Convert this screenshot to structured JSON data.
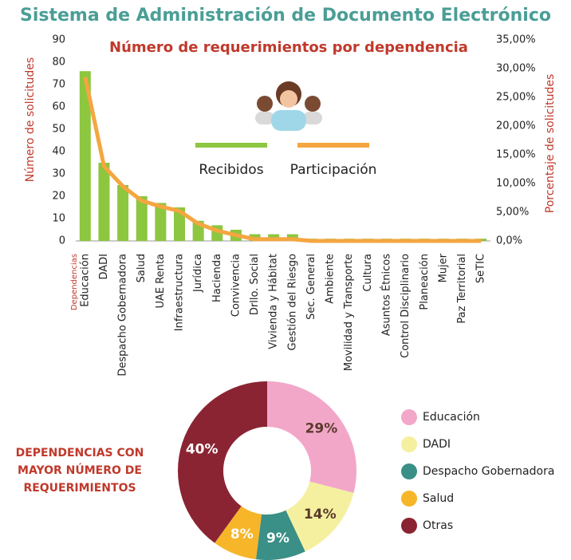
{
  "title": "Sistema de Administración de Documento Electrónico",
  "chart_data": [
    {
      "type": "bar",
      "title": "Número de requerimientos por dependencia",
      "xlabel": "Dependencias",
      "ylabel": "Número de solicitudes",
      "y2label": "Porcentaje de solicitudes",
      "categories": [
        "Educación",
        "DADI",
        "Despacho Gobernadora",
        "Salud",
        "UAE Renta",
        "Infraestructura",
        "Jurídica",
        "Hacienda",
        "Convivencia",
        "Drllo. Social",
        "Vivienda y Hábitat",
        "Gestión del Riesgo",
        "Sec. General",
        "Ambiente",
        "Movilidad y Transporte",
        "Cultura",
        "Asuntos Étnicos",
        "Control Disciplinario",
        "Planeación",
        "Mujer",
        "Paz Territorial",
        "SeTIC"
      ],
      "series": [
        {
          "name": "Recibidos",
          "color": "#8dc63f",
          "values": [
            76,
            35,
            25,
            20,
            17,
            15,
            9,
            7,
            5,
            3,
            3,
            3,
            1,
            1,
            1,
            1,
            1,
            1,
            1,
            1,
            1,
            1
          ]
        },
        {
          "name": "Participación",
          "color": "#f4a640",
          "type": "line",
          "axis": "y2",
          "values": [
            28.5,
            13,
            9.5,
            7,
            6,
            5.2,
            3,
            1.8,
            1,
            0.3,
            0.3,
            0.3,
            0,
            0,
            0,
            0,
            0,
            0,
            0,
            0,
            0,
            0
          ]
        }
      ],
      "ylim": [
        0,
        90
      ],
      "yticks": [
        0,
        10,
        20,
        30,
        40,
        50,
        60,
        70,
        80,
        90
      ],
      "y2lim": [
        0,
        35
      ],
      "y2ticks": [
        {
          "value": 0,
          "label": "0,0%"
        },
        {
          "value": 5,
          "label": "5,00%"
        },
        {
          "value": 10,
          "label": "10,00%"
        },
        {
          "value": 15,
          "label": "15,00%"
        },
        {
          "value": 20,
          "label": "20,00%"
        },
        {
          "value": 25,
          "label": "25,00%"
        },
        {
          "value": 30,
          "label": "30,00%"
        },
        {
          "value": 35,
          "label": "35,00%"
        }
      ]
    },
    {
      "type": "donut",
      "title": "DEPENDENCIAS CON MAYOR NÚMERO DE REQUERIMIENTOS",
      "categories": [
        "Educación",
        "DADI",
        "Despacho Gobernadora",
        "Salud",
        "Otras"
      ],
      "values": [
        29,
        14,
        9,
        8,
        40
      ],
      "value_labels": [
        "29%",
        "14%",
        "9%",
        "8%",
        "40%"
      ],
      "colors": [
        "#f2a7c9",
        "#f5f0a0",
        "#3a8f86",
        "#f7b52a",
        "#8a2432"
      ]
    }
  ]
}
